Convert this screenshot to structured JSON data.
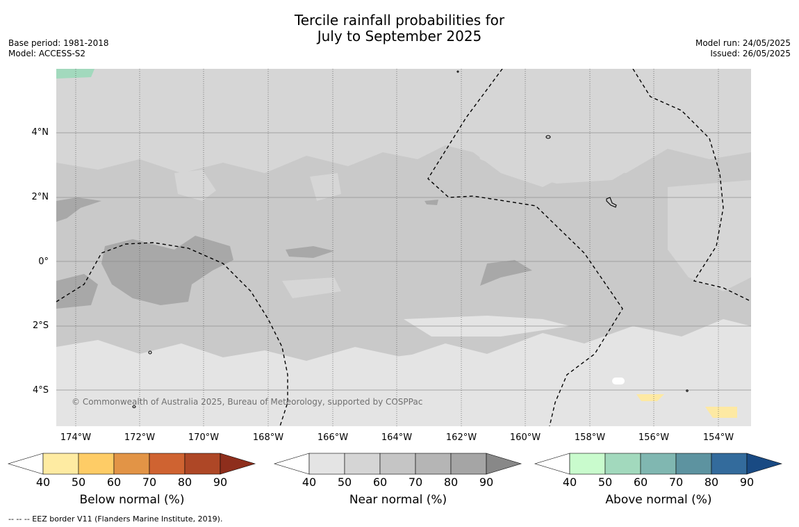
{
  "title_line1": "Tercile rainfall probabilities for",
  "title_line2": "July to September 2025",
  "meta_left": {
    "base_period": "Base period: 1981-2018",
    "model": "Model: ACCESS-S2"
  },
  "meta_right": {
    "model_run": "Model run: 24/05/2025",
    "issued": "Issued: 26/05/2025"
  },
  "copyright": "© Commonwealth of Australia 2025, Bureau of Meteorology, supported by COSPPac",
  "footnote": "--  --  -- EEZ border V11 (Flanders Marine Institute, 2019).",
  "map": {
    "lat_labels": [
      "4°N",
      "2°N",
      "0°",
      "2°S",
      "4°S"
    ],
    "lon_labels": [
      "174°W",
      "172°W",
      "170°W",
      "168°W",
      "166°W",
      "164°W",
      "162°W",
      "160°W",
      "158°W",
      "156°W",
      "154°W"
    ],
    "colors": {
      "base": "#c9c9c9",
      "light": "#d6d6d6",
      "lighter": "#e4e4e4",
      "dark": "#a8a8a8",
      "yellow": "#fde9a3",
      "green": "#a2d9bd"
    }
  },
  "colorbars": [
    {
      "title": "Below normal (%)",
      "ticks": [
        "40",
        "50",
        "60",
        "70",
        "80",
        "90"
      ],
      "colors": [
        "#ffffff",
        "#feeba2",
        "#fecc66",
        "#e29446",
        "#cf6331",
        "#ae4726",
        "#8e2e1c"
      ]
    },
    {
      "title": "Near normal (%)",
      "ticks": [
        "40",
        "50",
        "60",
        "70",
        "80",
        "90"
      ],
      "colors": [
        "#ffffff",
        "#e4e4e4",
        "#d5d5d5",
        "#c5c5c5",
        "#b5b5b5",
        "#a5a5a5",
        "#888888"
      ]
    },
    {
      "title": "Above normal (%)",
      "ticks": [
        "40",
        "50",
        "60",
        "70",
        "80",
        "90"
      ],
      "colors": [
        "#ffffff",
        "#c9fbcd",
        "#a2d9bd",
        "#80b7b1",
        "#5d93a0",
        "#336b9c",
        "#194a83"
      ]
    }
  ]
}
